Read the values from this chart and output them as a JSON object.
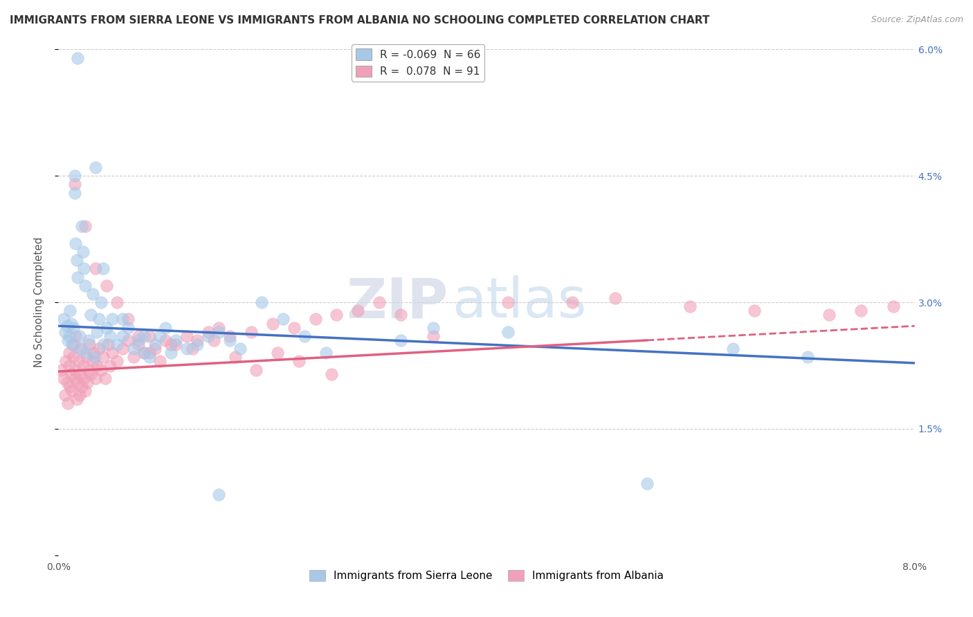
{
  "title": "IMMIGRANTS FROM SIERRA LEONE VS IMMIGRANTS FROM ALBANIA NO SCHOOLING COMPLETED CORRELATION CHART",
  "source": "Source: ZipAtlas.com",
  "ylabel": "No Schooling Completed",
  "xlim": [
    0.0,
    8.0
  ],
  "ylim": [
    0.0,
    6.0
  ],
  "yticks": [
    0.0,
    1.5,
    3.0,
    4.5,
    6.0
  ],
  "ytick_labels": [
    "",
    "1.5%",
    "3.0%",
    "4.5%",
    "6.0%"
  ],
  "xtick_labels": [
    "0.0%",
    "8.0%"
  ],
  "legend_entries": [
    {
      "label": "R = -0.069  N = 66",
      "color": "#A8C8E8"
    },
    {
      "label": "R =  0.078  N = 91",
      "color": "#F0A0B8"
    }
  ],
  "legend_labels_bottom": [
    "Immigrants from Sierra Leone",
    "Immigrants from Albania"
  ],
  "blue_color": "#A8C8E8",
  "pink_color": "#F0A0B8",
  "blue_line_color": "#4472C4",
  "pink_line_color": "#E06080",
  "blue_trend": {
    "x_start": 0.0,
    "y_start": 2.72,
    "x_end": 8.0,
    "y_end": 2.28
  },
  "pink_trend_solid": {
    "x_start": 0.0,
    "y_start": 2.18,
    "x_end": 5.5,
    "y_end": 2.55
  },
  "pink_trend_dashed": {
    "x_start": 5.5,
    "y_start": 2.55,
    "x_end": 8.0,
    "y_end": 2.72
  },
  "blue_scatter_x": [
    0.05,
    0.06,
    0.08,
    0.09,
    0.1,
    0.11,
    0.12,
    0.13,
    0.14,
    0.15,
    0.15,
    0.16,
    0.17,
    0.18,
    0.2,
    0.2,
    0.22,
    0.23,
    0.24,
    0.25,
    0.26,
    0.28,
    0.3,
    0.32,
    0.34,
    0.36,
    0.38,
    0.4,
    0.42,
    0.45,
    0.48,
    0.5,
    0.55,
    0.6,
    0.65,
    0.7,
    0.75,
    0.8,
    0.85,
    0.9,
    0.95,
    1.0,
    1.05,
    1.1,
    1.2,
    1.3,
    1.4,
    1.5,
    1.6,
    1.7,
    1.9,
    2.1,
    2.3,
    2.5,
    3.2,
    3.5,
    4.2,
    5.5,
    6.3,
    7.0,
    0.18,
    0.35,
    0.42,
    0.6,
    0.8,
    1.5
  ],
  "blue_scatter_y": [
    2.8,
    2.65,
    2.72,
    2.55,
    2.6,
    2.9,
    2.75,
    2.5,
    2.7,
    4.5,
    4.3,
    3.7,
    3.5,
    3.3,
    2.45,
    2.6,
    3.9,
    3.6,
    3.4,
    3.2,
    2.4,
    2.55,
    2.85,
    3.1,
    2.35,
    2.65,
    2.8,
    3.0,
    2.5,
    2.7,
    2.6,
    2.8,
    2.5,
    2.6,
    2.7,
    2.45,
    2.55,
    2.4,
    2.35,
    2.5,
    2.6,
    2.7,
    2.4,
    2.55,
    2.45,
    2.5,
    2.6,
    2.65,
    2.55,
    2.45,
    3.0,
    2.8,
    2.6,
    2.4,
    2.55,
    2.7,
    2.65,
    0.85,
    2.45,
    2.35,
    5.9,
    4.6,
    3.4,
    2.8,
    2.6,
    0.72
  ],
  "pink_scatter_x": [
    0.03,
    0.05,
    0.06,
    0.07,
    0.08,
    0.09,
    0.1,
    0.1,
    0.11,
    0.12,
    0.13,
    0.14,
    0.14,
    0.15,
    0.16,
    0.16,
    0.17,
    0.18,
    0.19,
    0.2,
    0.2,
    0.21,
    0.22,
    0.23,
    0.24,
    0.25,
    0.26,
    0.27,
    0.28,
    0.29,
    0.3,
    0.32,
    0.33,
    0.35,
    0.36,
    0.38,
    0.4,
    0.42,
    0.44,
    0.46,
    0.48,
    0.5,
    0.55,
    0.6,
    0.65,
    0.7,
    0.75,
    0.8,
    0.85,
    0.9,
    1.0,
    1.1,
    1.2,
    1.3,
    1.4,
    1.5,
    1.6,
    1.8,
    2.0,
    2.2,
    2.4,
    2.6,
    2.8,
    3.0,
    3.2,
    4.8,
    5.2,
    5.9,
    6.5,
    7.2,
    7.5,
    7.8,
    0.15,
    0.25,
    0.35,
    0.45,
    0.55,
    0.65,
    0.75,
    0.85,
    0.95,
    1.05,
    1.25,
    1.45,
    1.65,
    1.85,
    2.05,
    2.25,
    2.55,
    3.5,
    4.2
  ],
  "pink_scatter_y": [
    2.2,
    2.1,
    1.9,
    2.3,
    2.05,
    1.8,
    2.25,
    2.4,
    2.0,
    2.15,
    1.95,
    2.35,
    2.5,
    2.2,
    2.1,
    2.6,
    1.85,
    2.05,
    2.3,
    1.9,
    2.15,
    2.45,
    2.0,
    2.25,
    2.1,
    1.95,
    2.35,
    2.05,
    2.2,
    2.5,
    2.15,
    2.3,
    2.4,
    2.1,
    2.25,
    2.45,
    2.2,
    2.35,
    2.1,
    2.5,
    2.25,
    2.4,
    2.3,
    2.45,
    2.55,
    2.35,
    2.5,
    2.4,
    2.6,
    2.45,
    2.55,
    2.5,
    2.6,
    2.55,
    2.65,
    2.7,
    2.6,
    2.65,
    2.75,
    2.7,
    2.8,
    2.85,
    2.9,
    3.0,
    2.85,
    3.0,
    3.05,
    2.95,
    2.9,
    2.85,
    2.9,
    2.95,
    4.4,
    3.9,
    3.4,
    3.2,
    3.0,
    2.8,
    2.6,
    2.4,
    2.3,
    2.5,
    2.45,
    2.55,
    2.35,
    2.2,
    2.4,
    2.3,
    2.15,
    2.6,
    3.0
  ],
  "watermark_zip": "ZIP",
  "watermark_atlas": "atlas",
  "background_color": "#ffffff",
  "grid_color": "#cccccc",
  "title_fontsize": 11,
  "axis_label_fontsize": 11,
  "tick_fontsize": 10,
  "source_fontsize": 9
}
